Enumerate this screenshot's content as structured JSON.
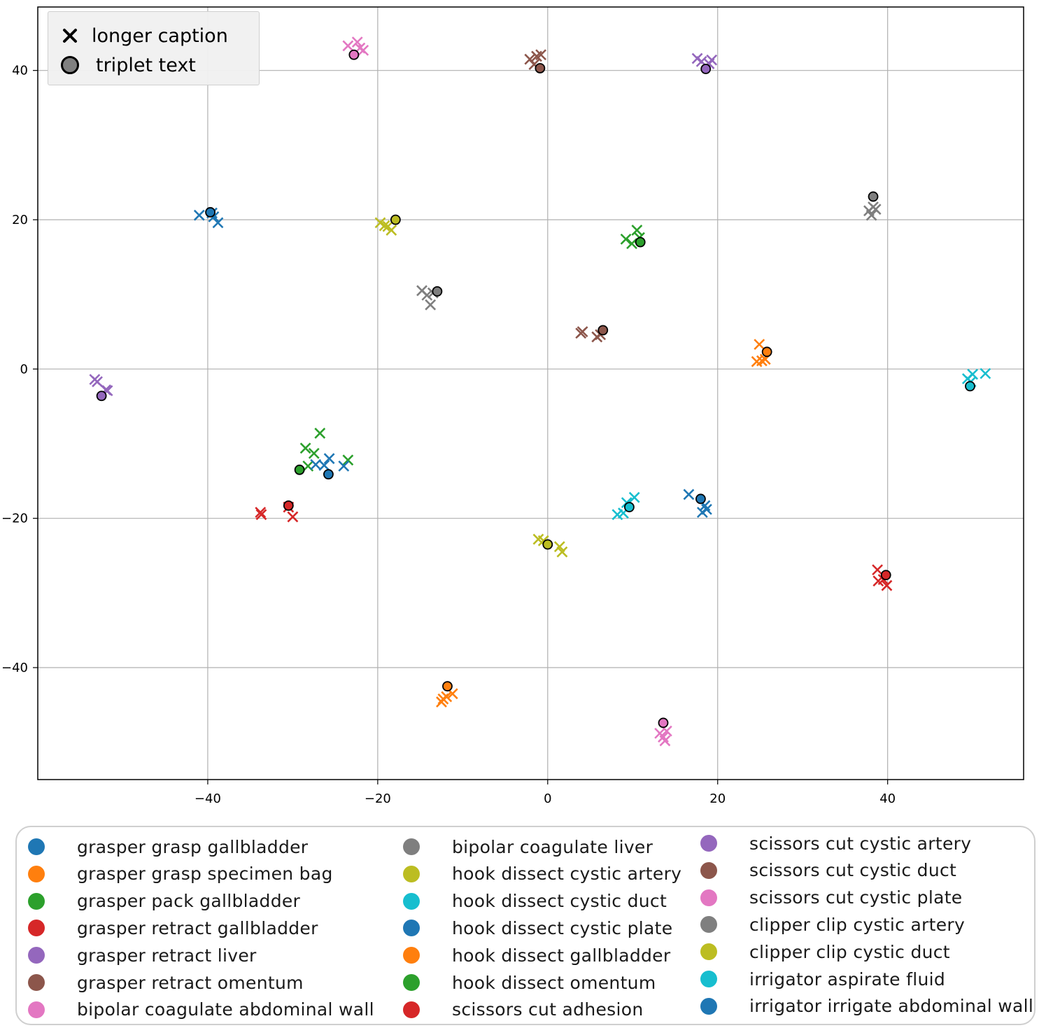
{
  "chart_data": {
    "type": "scatter",
    "title": "",
    "xlabel": "",
    "ylabel": "",
    "xlim": [
      -60,
      56
    ],
    "ylim": [
      -55,
      48.5
    ],
    "grid": true,
    "x_ticks": [
      -40,
      -20,
      0,
      20,
      40
    ],
    "y_ticks": [
      40,
      20,
      0,
      -20,
      -40
    ],
    "x_tick_labels": [
      "−40",
      "−20",
      "0",
      "20",
      "40"
    ],
    "y_tick_labels": [
      "40",
      "20",
      "0",
      "−20",
      "−40"
    ],
    "marker_legend": [
      {
        "label": "longer caption",
        "marker": "x"
      },
      {
        "label": "triplet text",
        "marker": "o"
      }
    ],
    "legend_placement": "bottom",
    "series": [
      {
        "name": "grasper grasp gallbladder",
        "color": "#1f77b4",
        "triplet": [
          -39.7,
          21.0
        ],
        "captions": [
          [
            -41,
            20.6
          ],
          [
            -39.3,
            20.4
          ],
          [
            -38.8,
            19.6
          ],
          [
            -39.5,
            20.9
          ]
        ]
      },
      {
        "name": "grasper grasp specimen bag",
        "color": "#ff7f0e",
        "triplet": [
          -11.8,
          -42.5
        ],
        "captions": [
          [
            -12.5,
            -44.6
          ],
          [
            -11.9,
            -43.9
          ],
          [
            -11.2,
            -43.5
          ],
          [
            -12.3,
            -44.2
          ]
        ]
      },
      {
        "name": "grasper pack gallbladder",
        "color": "#2ca02c",
        "triplet": [
          -29.2,
          -13.5
        ],
        "captions": [
          [
            -28.5,
            -10.6
          ],
          [
            -27.5,
            -11.3
          ],
          [
            -26.8,
            -8.6
          ],
          [
            -28.2,
            -13.0
          ],
          [
            -23.5,
            -12.2
          ]
        ]
      },
      {
        "name": "grasper retract gallbladder",
        "color": "#d62728",
        "triplet": [
          -30.5,
          -18.3
        ],
        "captions": [
          [
            -33.8,
            -19.2
          ],
          [
            -33.7,
            -19.5
          ],
          [
            -30.0,
            -19.8
          ],
          [
            -30.5,
            -18.5
          ]
        ]
      },
      {
        "name": "grasper retract liver",
        "color": "#9467bd",
        "triplet": [
          -52.5,
          -3.6
        ],
        "captions": [
          [
            -53.3,
            -1.4
          ],
          [
            -53.0,
            -1.7
          ],
          [
            -52.0,
            -2.8
          ],
          [
            -51.8,
            -2.9
          ]
        ]
      },
      {
        "name": "grasper retract omentum",
        "color": "#8c564b",
        "triplet": [
          6.5,
          5.2
        ],
        "captions": [
          [
            3.9,
            4.8
          ],
          [
            4.1,
            5.0
          ],
          [
            5.8,
            4.3
          ],
          [
            6.2,
            4.6
          ]
        ]
      },
      {
        "name": "bipolar coagulate abdominal wall",
        "color": "#e377c2",
        "triplet": [
          -22.8,
          42.1
        ],
        "captions": [
          [
            -23.5,
            43.3
          ],
          [
            -22.4,
            43.8
          ],
          [
            -21.7,
            42.7
          ],
          [
            -22.1,
            43.0
          ]
        ]
      },
      {
        "name": "bipolar coagulate liver",
        "color": "#7f7f7f",
        "triplet": [
          -13.0,
          10.4
        ],
        "captions": [
          [
            -14.8,
            10.5
          ],
          [
            -14.2,
            9.9
          ],
          [
            -13.8,
            8.6
          ],
          [
            -13.5,
            10.2
          ]
        ]
      },
      {
        "name": "hook dissect cystic artery",
        "color": "#bcbd22",
        "triplet": [
          -17.9,
          20.0
        ],
        "captions": [
          [
            -19.7,
            19.6
          ],
          [
            -19.2,
            19.2
          ],
          [
            -18.4,
            18.6
          ],
          [
            -18.8,
            19.1
          ]
        ]
      },
      {
        "name": "hook dissect cystic duct",
        "color": "#17becf",
        "triplet": [
          9.6,
          -18.5
        ],
        "captions": [
          [
            8.2,
            -19.5
          ],
          [
            8.9,
            -19.3
          ],
          [
            9.3,
            -17.9
          ],
          [
            10.2,
            -17.2
          ]
        ]
      },
      {
        "name": "hook dissect cystic plate",
        "color": "#1f77b4",
        "triplet": [
          18.0,
          -17.4
        ],
        "captions": [
          [
            16.6,
            -16.8
          ],
          [
            18.2,
            -19.2
          ],
          [
            18.5,
            -18.3
          ],
          [
            18.7,
            -18.8
          ]
        ]
      },
      {
        "name": "hook dissect gallbladder",
        "color": "#ff7f0e",
        "triplet": [
          25.8,
          2.3
        ],
        "captions": [
          [
            24.9,
            3.3
          ],
          [
            25.2,
            1.1
          ],
          [
            25.6,
            1.3
          ],
          [
            24.6,
            1.0
          ]
        ]
      },
      {
        "name": "hook dissect omentum",
        "color": "#2ca02c",
        "triplet": [
          10.9,
          17.0
        ],
        "captions": [
          [
            9.2,
            17.4
          ],
          [
            9.9,
            16.8
          ],
          [
            10.5,
            18.6
          ],
          [
            10.8,
            17.6
          ]
        ]
      },
      {
        "name": "scissors cut adhesion",
        "color": "#d62728",
        "triplet": [
          39.8,
          -27.6
        ],
        "captions": [
          [
            38.8,
            -26.9
          ],
          [
            38.9,
            -28.4
          ],
          [
            39.5,
            -28.2
          ],
          [
            39.9,
            -29.0
          ]
        ]
      },
      {
        "name": "scissors cut cystic artery",
        "color": "#9467bd",
        "triplet": [
          18.6,
          40.2
        ],
        "captions": [
          [
            17.6,
            41.6
          ],
          [
            18.1,
            41.2
          ],
          [
            19.3,
            41.4
          ],
          [
            19.0,
            40.9
          ]
        ]
      },
      {
        "name": "scissors cut cystic duct",
        "color": "#8c564b",
        "triplet": [
          -0.9,
          40.3
        ],
        "captions": [
          [
            -2.1,
            41.5
          ],
          [
            -1.3,
            41.9
          ],
          [
            -0.8,
            42.1
          ],
          [
            -1.6,
            40.8
          ]
        ]
      },
      {
        "name": "scissors cut cystic plate",
        "color": "#e377c2",
        "triplet": [
          13.6,
          -47.4
        ],
        "captions": [
          [
            13.2,
            -48.8
          ],
          [
            13.6,
            -49.3
          ],
          [
            13.8,
            -49.8
          ],
          [
            14.0,
            -48.5
          ]
        ]
      },
      {
        "name": "clipper clip cystic artery",
        "color": "#7f7f7f",
        "triplet": [
          38.3,
          23.1
        ],
        "captions": [
          [
            37.8,
            21.2
          ],
          [
            38.1,
            20.6
          ],
          [
            38.6,
            21.4
          ],
          [
            38.3,
            21.7
          ]
        ]
      },
      {
        "name": "clipper clip cystic duct",
        "color": "#bcbd22",
        "triplet": [
          0.0,
          -23.5
        ],
        "captions": [
          [
            -1.1,
            -22.8
          ],
          [
            -0.5,
            -23.0
          ],
          [
            1.4,
            -23.8
          ],
          [
            1.7,
            -24.5
          ]
        ]
      },
      {
        "name": "irrigator aspirate fluid",
        "color": "#17becf",
        "triplet": [
          49.7,
          -2.3
        ],
        "captions": [
          [
            49.4,
            -1.3
          ],
          [
            50.0,
            -0.7
          ],
          [
            51.5,
            -0.6
          ],
          [
            49.8,
            -1.7
          ]
        ]
      },
      {
        "name": "irrigator irrigate abdominal wall",
        "color": "#1f77b4",
        "triplet": [
          -25.8,
          -14.1
        ],
        "captions": [
          [
            -27.3,
            -12.8
          ],
          [
            -26.3,
            -12.9
          ],
          [
            -25.7,
            -12.0
          ],
          [
            -24.0,
            -13.0
          ]
        ]
      }
    ]
  }
}
